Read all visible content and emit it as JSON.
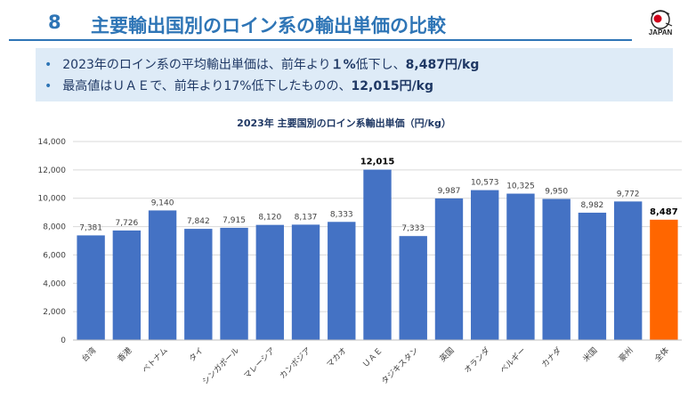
{
  "header": {
    "number": "8",
    "title": "主要輸出国別のロイン系の輸出単価の比較",
    "logo_text": "JAPAN"
  },
  "summary": {
    "line1_prefix": "2023年のロイン系の平均輸出単価は、前年より",
    "line1_bold1": "１%",
    "line1_mid": "低下し、",
    "line1_bold2": "8,487円/kg",
    "line2_prefix": "最高値はＵＡＥで、前年より17%低下したものの、",
    "line2_bold": "12,015円/kg"
  },
  "chart_data": {
    "type": "bar",
    "title": "2023年 主要国別のロイン系輸出単価（円/kg）",
    "categories": [
      "台湾",
      "香港",
      "ベトナム",
      "タイ",
      "シンガポール",
      "マレーシア",
      "カンボジア",
      "マカオ",
      "ＵＡＥ",
      "タジキスタン",
      "英国",
      "オランダ",
      "ベルギー",
      "カナダ",
      "米国",
      "豪州",
      "全体"
    ],
    "values": [
      7381,
      7726,
      9140,
      7842,
      7915,
      8120,
      8137,
      8333,
      12015,
      7333,
      9987,
      10573,
      10325,
      9950,
      8982,
      9772,
      8487
    ],
    "value_labels": [
      "7,381",
      "7,726",
      "9,140",
      "7,842",
      "7,915",
      "8,120",
      "8,137",
      "8,333",
      "12,015",
      "7,333",
      "9,987",
      "10,573",
      "10,325",
      "9,950",
      "8,982",
      "9,772",
      "8,487"
    ],
    "highlight_index": 16,
    "bold_label_indices": [
      8,
      16
    ],
    "ylim": [
      0,
      14000
    ],
    "yticks": [
      0,
      2000,
      4000,
      6000,
      8000,
      10000,
      12000,
      14000
    ],
    "ytick_labels": [
      "0",
      "2,000",
      "4,000",
      "6,000",
      "8,000",
      "10,000",
      "12,000",
      "14,000"
    ],
    "colors": {
      "bar": "#4472c4",
      "highlight": "#ff6600",
      "grid": "#d9d9d9",
      "axis": "#bfbfbf"
    },
    "grid": true,
    "xlabel": "",
    "ylabel": ""
  }
}
